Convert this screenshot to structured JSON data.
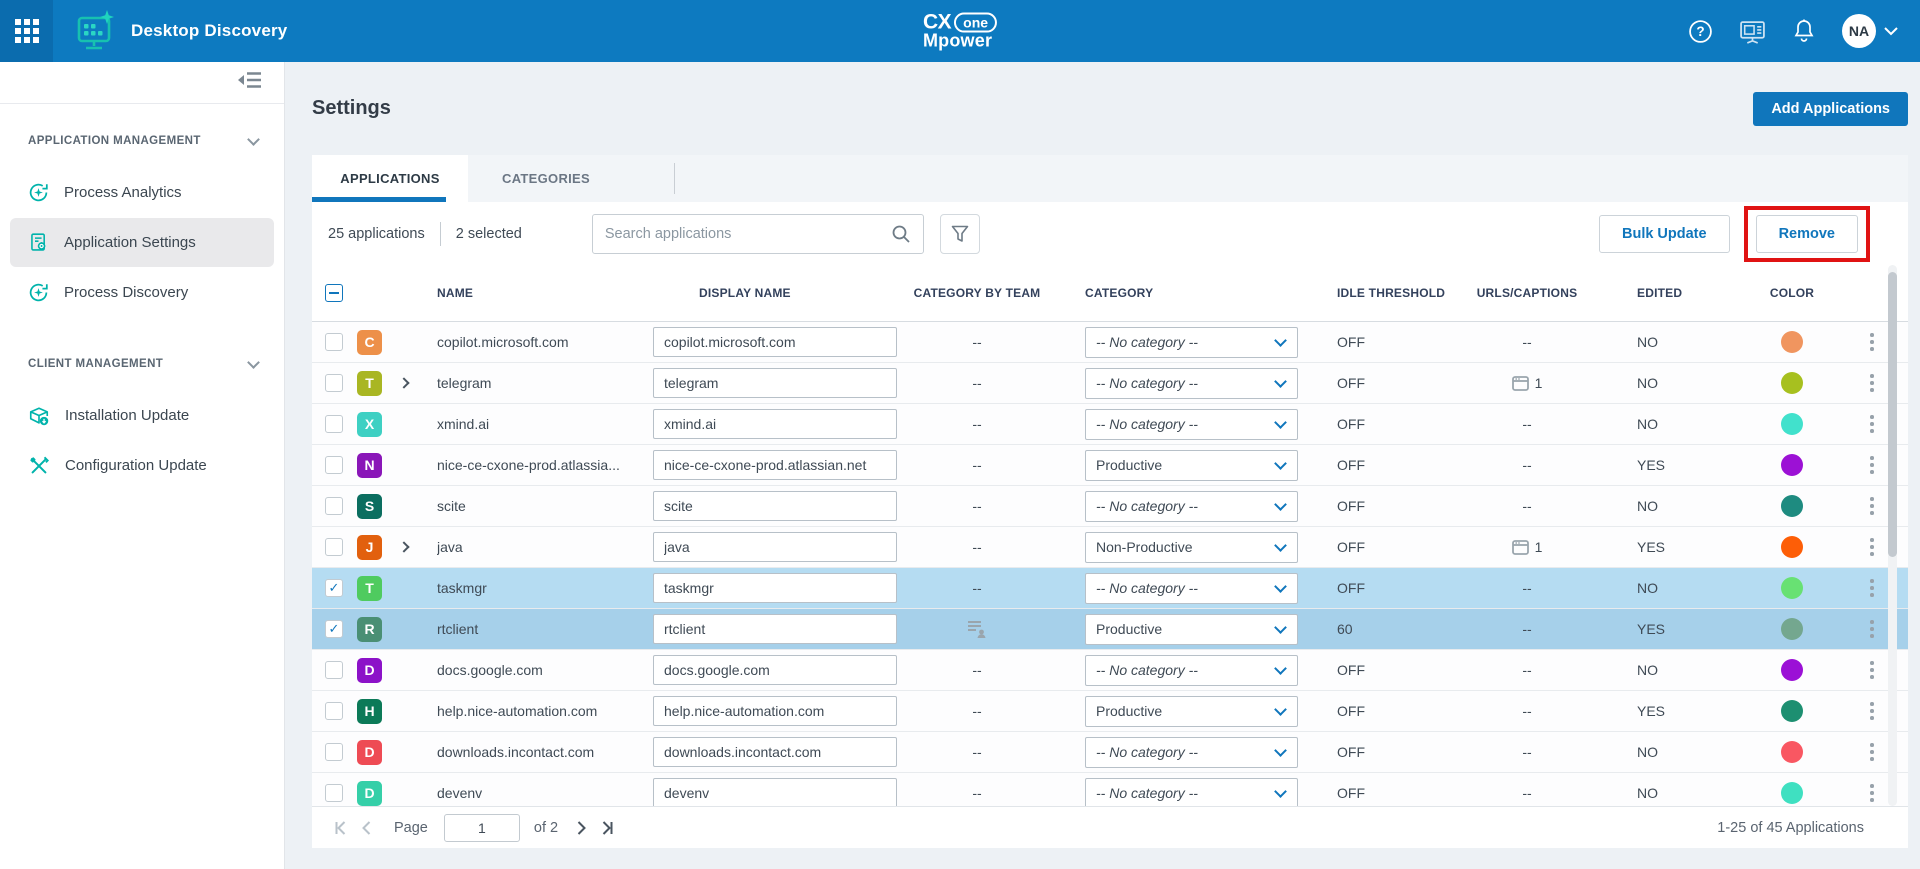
{
  "topbar": {
    "app_title": "Desktop Discovery",
    "logo": {
      "cx": "CX",
      "one": "one",
      "mpower": "Mpower"
    },
    "avatar_initials": "NA"
  },
  "sidebar": {
    "sections": [
      {
        "label": "APPLICATION MANAGEMENT",
        "items": [
          {
            "label": "Process Analytics"
          },
          {
            "label": "Application Settings",
            "active": true
          },
          {
            "label": "Process Discovery"
          }
        ]
      },
      {
        "label": "CLIENT MANAGEMENT",
        "items": [
          {
            "label": "Installation Update"
          },
          {
            "label": "Configuration Update"
          }
        ]
      }
    ]
  },
  "main": {
    "title": "Settings",
    "add_button": "Add Applications",
    "tabs": [
      {
        "label": "APPLICATIONS",
        "active": true
      },
      {
        "label": "CATEGORIES",
        "active": false
      }
    ],
    "toolbar": {
      "count_label": "25 applications",
      "selected_label": "2 selected",
      "search_placeholder": "Search applications",
      "bulk_label": "Bulk Update",
      "remove_label": "Remove"
    },
    "table": {
      "columns": [
        "NAME",
        "DISPLAY NAME",
        "CATEGORY BY TEAM",
        "CATEGORY",
        "IDLE THRESHOLD",
        "URLS/CAPTIONS",
        "EDITED",
        "COLOR"
      ],
      "rows": [
        {
          "letter": "C",
          "icon": "#ed9049",
          "name": "copilot.microsoft.com",
          "display": "copilot.microsoft.com",
          "expandable": false,
          "selected": false,
          "team_icon": false,
          "category": "-- No category --",
          "idle": "OFF",
          "urls": null,
          "edited": "NO",
          "dot": "#f0955f"
        },
        {
          "letter": "T",
          "icon": "#a9b623",
          "name": "telegram",
          "display": "telegram",
          "expandable": true,
          "selected": false,
          "team_icon": false,
          "category": "-- No category --",
          "idle": "OFF",
          "urls": "1",
          "edited": "NO",
          "dot": "#a7c01f"
        },
        {
          "letter": "X",
          "icon": "#3ed0c3",
          "name": "xmind.ai",
          "display": "xmind.ai",
          "expandable": false,
          "selected": false,
          "team_icon": false,
          "category": "-- No category --",
          "idle": "OFF",
          "urls": null,
          "edited": "NO",
          "dot": "#41e1cc"
        },
        {
          "letter": "N",
          "icon": "#8a16b8",
          "name": "nice-ce-cxone-prod.atlassia...",
          "display": "nice-ce-cxone-prod.atlassian.net",
          "expandable": false,
          "selected": false,
          "team_icon": false,
          "category": "Productive",
          "idle": "OFF",
          "urls": null,
          "edited": "YES",
          "dot": "#9c11d5"
        },
        {
          "letter": "S",
          "icon": "#0b6e60",
          "name": "scite",
          "display": "scite",
          "expandable": false,
          "selected": false,
          "team_icon": false,
          "category": "-- No category --",
          "idle": "OFF",
          "urls": null,
          "edited": "NO",
          "dot": "#1e8b80"
        },
        {
          "letter": "J",
          "icon": "#e2600e",
          "name": "java",
          "display": "java",
          "expandable": true,
          "selected": false,
          "team_icon": false,
          "category": "Non-Productive",
          "idle": "OFF",
          "urls": "1",
          "edited": "YES",
          "dot": "#fd5e07"
        },
        {
          "letter": "T",
          "icon": "#4fcb5f",
          "name": "taskmgr",
          "display": "taskmgr",
          "expandable": false,
          "selected": true,
          "row_bg": "#b5dcf2",
          "team_icon": false,
          "category": "-- No category --",
          "idle": "OFF",
          "urls": null,
          "edited": "NO",
          "dot": "#68e173"
        },
        {
          "letter": "R",
          "icon": "#4a8f74",
          "name": "rtclient",
          "display": "rtclient",
          "expandable": false,
          "selected": true,
          "row_bg": "#a6d0ea",
          "team_icon": true,
          "category": "Productive",
          "idle": "60",
          "urls": null,
          "edited": "YES",
          "dot": "#74a78f"
        },
        {
          "letter": "D",
          "icon": "#8c12c8",
          "name": "docs.google.com",
          "display": "docs.google.com",
          "expandable": false,
          "selected": false,
          "team_icon": false,
          "category": "-- No category --",
          "idle": "OFF",
          "urls": null,
          "edited": "NO",
          "dot": "#9b10d6"
        },
        {
          "letter": "H",
          "icon": "#0c7a58",
          "name": "help.nice-automation.com",
          "display": "help.nice-automation.com",
          "expandable": false,
          "selected": false,
          "team_icon": false,
          "category": "Productive",
          "idle": "OFF",
          "urls": null,
          "edited": "YES",
          "dot": "#1d8f71"
        },
        {
          "letter": "D",
          "icon": "#ee4b54",
          "name": "downloads.incontact.com",
          "display": "downloads.incontact.com",
          "expandable": false,
          "selected": false,
          "team_icon": false,
          "category": "-- No category --",
          "idle": "OFF",
          "urls": null,
          "edited": "NO",
          "dot": "#f95762"
        },
        {
          "letter": "D",
          "icon": "#35cfa8",
          "name": "devenv",
          "display": "devenv",
          "expandable": false,
          "selected": false,
          "team_icon": false,
          "category": "-- No category --",
          "idle": "OFF",
          "urls": null,
          "edited": "NO",
          "dot": "#3fe0c1"
        }
      ],
      "empty_value": "--"
    },
    "pagination": {
      "page_label": "Page",
      "page": "1",
      "of_label": "of 2",
      "range": "1-25 of 45 Applications"
    }
  }
}
